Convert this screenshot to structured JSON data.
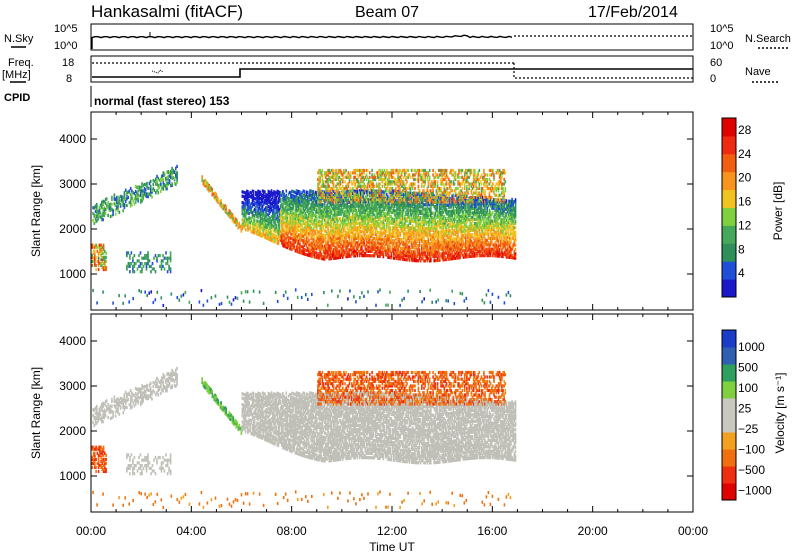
{
  "header": {
    "station": "Hankasalmi (fitACF)",
    "beam": "Beam 07",
    "date": "17/Feb/2014"
  },
  "noise_panel": {
    "left_label": "N.Sky",
    "right_label": "N.Search",
    "tick_top": "10^5",
    "tick_bottom": "10^0"
  },
  "freq_panel": {
    "left_label_1": "Freq.",
    "left_label_2": "[MHz]",
    "left_tick_top": "18",
    "left_tick_bottom": "8",
    "right_label": "Nave",
    "right_tick_top": "60",
    "right_tick_bottom": "0"
  },
  "cpid": {
    "label": "CPID",
    "mode_text": "normal (fast stereo) 153"
  },
  "colors": {
    "power_scale": [
      "#1a1acc",
      "#1f4fd8",
      "#2f8f5a",
      "#45a85a",
      "#7fcf3f",
      "#f2c21e",
      "#f7941d",
      "#f06010",
      "#ee2a10",
      "#e00000"
    ],
    "velocity_scale": [
      "#1a3cc8",
      "#2f5fb0",
      "#2f9f5f",
      "#7fcf3f",
      "#c8c8c0",
      "#c8c8c0",
      "#f2a020",
      "#f07010",
      "#ee3010",
      "#e00000"
    ],
    "ground_scatter": "#c0c0b8"
  },
  "chart_data": [
    {
      "type": "heatmap",
      "panel": "power",
      "ylabel": "Slant Range [km]",
      "ylim": [
        200,
        4600
      ],
      "yticks": [
        "1000",
        "2000",
        "3000",
        "4000"
      ],
      "colorbar_label": "Power [dB]",
      "colorbar_ticks": [
        "4",
        "8",
        "12",
        "16",
        "20",
        "24",
        "28"
      ],
      "colorbar_range": [
        0,
        30
      ],
      "xlim_hours": [
        0,
        24
      ]
    },
    {
      "type": "heatmap",
      "panel": "velocity",
      "ylabel": "Slant Range [km]",
      "ylim": [
        200,
        4600
      ],
      "yticks": [
        "1000",
        "2000",
        "3000",
        "4000"
      ],
      "colorbar_label": "Velocity [m s⁻¹]",
      "colorbar_ticks": [
        "1000",
        "500",
        "100",
        "25",
        "−25",
        "−100",
        "−500",
        "−1000"
      ],
      "xlim_hours": [
        0,
        24
      ],
      "xticks": [
        "00:00",
        "04:00",
        "08:00",
        "12:00",
        "16:00",
        "20:00",
        "00:00"
      ],
      "xlabel": "Time UT"
    }
  ]
}
